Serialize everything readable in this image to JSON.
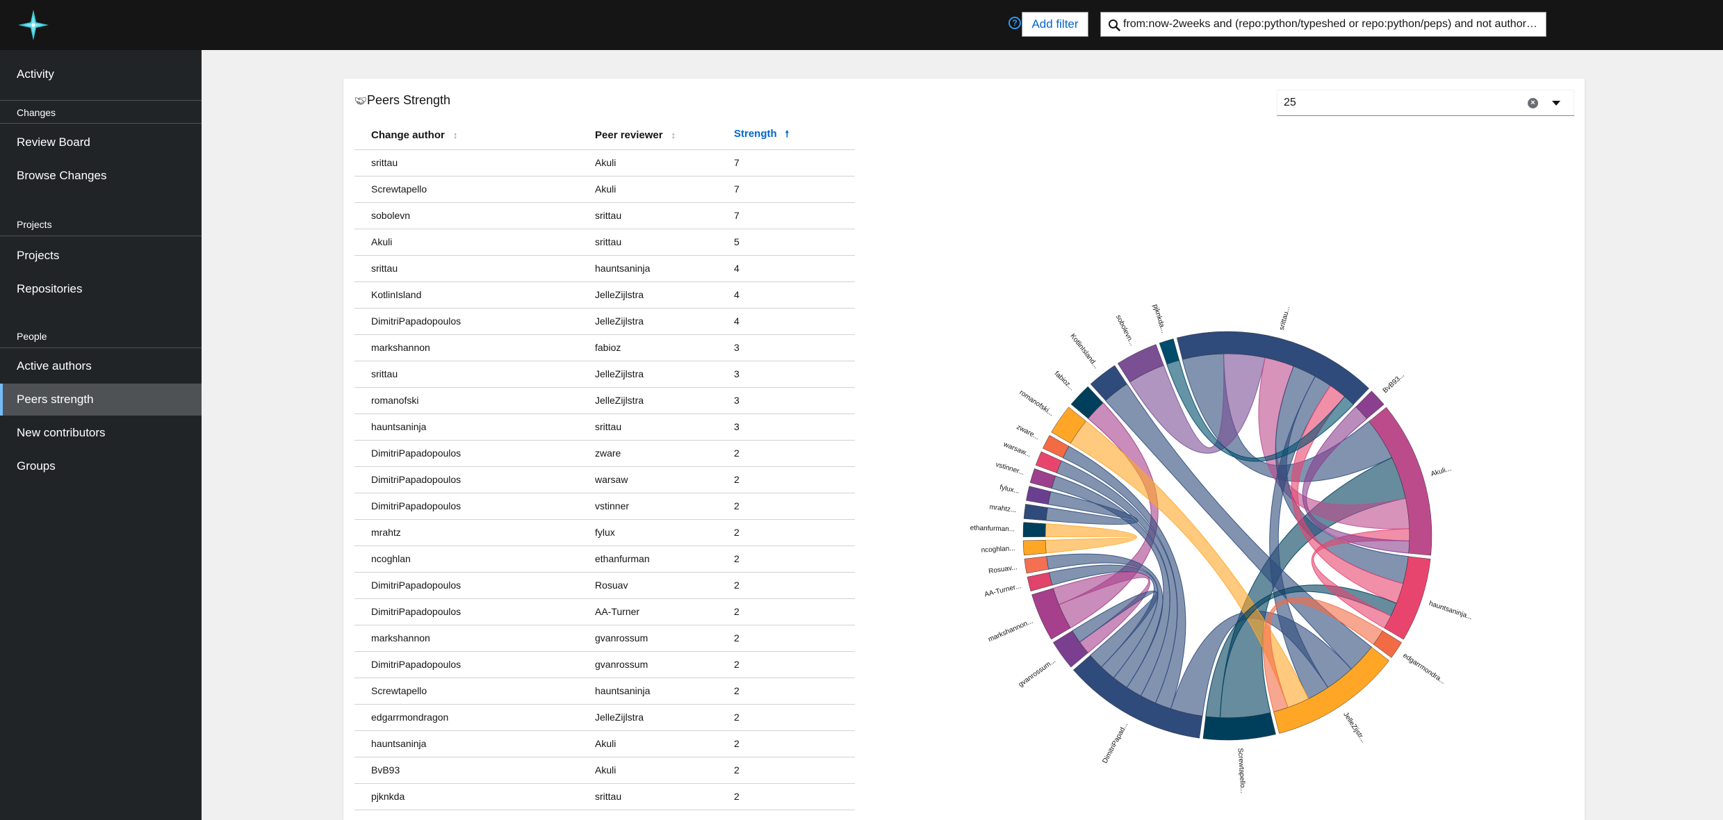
{
  "header": {
    "add_filter_label": "Add filter",
    "search_query": "from:now-2weeks and (repo:python/typeshed or repo:python/peps) and not author:(bot or bots or ci or zuul or jenkins or build)"
  },
  "sidebar": {
    "items": [
      {
        "label": "Activity",
        "kind": "item"
      },
      {
        "label": "Changes",
        "kind": "section"
      },
      {
        "label": "Review Board",
        "kind": "item"
      },
      {
        "label": "Browse Changes",
        "kind": "item"
      },
      {
        "label": "Projects",
        "kind": "section"
      },
      {
        "label": "Projects",
        "kind": "item"
      },
      {
        "label": "Repositories",
        "kind": "item"
      },
      {
        "label": "People",
        "kind": "section"
      },
      {
        "label": "Active authors",
        "kind": "item"
      },
      {
        "label": "Peers strength",
        "kind": "item",
        "active": true
      },
      {
        "label": "New contributors",
        "kind": "item"
      },
      {
        "label": "Groups",
        "kind": "item"
      }
    ]
  },
  "card": {
    "title": "Peers Strength",
    "limit_value": "25"
  },
  "table": {
    "columns": [
      "Change author",
      "Peer reviewer",
      "Strength"
    ],
    "sorted_column": "Strength",
    "rows": [
      [
        "srittau",
        "Akuli",
        "7"
      ],
      [
        "Screwtapello",
        "Akuli",
        "7"
      ],
      [
        "sobolevn",
        "srittau",
        "7"
      ],
      [
        "Akuli",
        "srittau",
        "5"
      ],
      [
        "srittau",
        "hauntsaninja",
        "4"
      ],
      [
        "KotlinIsland",
        "JelleZijlstra",
        "4"
      ],
      [
        "DimitriPapadopoulos",
        "JelleZijlstra",
        "4"
      ],
      [
        "markshannon",
        "fabioz",
        "3"
      ],
      [
        "srittau",
        "JelleZijlstra",
        "3"
      ],
      [
        "romanofski",
        "JelleZijlstra",
        "3"
      ],
      [
        "hauntsaninja",
        "srittau",
        "3"
      ],
      [
        "DimitriPapadopoulos",
        "zware",
        "2"
      ],
      [
        "DimitriPapadopoulos",
        "warsaw",
        "2"
      ],
      [
        "DimitriPapadopoulos",
        "vstinner",
        "2"
      ],
      [
        "mrahtz",
        "fylux",
        "2"
      ],
      [
        "ncoghlan",
        "ethanfurman",
        "2"
      ],
      [
        "DimitriPapadopoulos",
        "Rosuav",
        "2"
      ],
      [
        "DimitriPapadopoulos",
        "AA-Turner",
        "2"
      ],
      [
        "markshannon",
        "gvanrossum",
        "2"
      ],
      [
        "DimitriPapadopoulos",
        "gvanrossum",
        "2"
      ],
      [
        "Screwtapello",
        "hauntsaninja",
        "2"
      ],
      [
        "edgarrmondragon",
        "JelleZijlstra",
        "2"
      ],
      [
        "hauntsaninja",
        "Akuli",
        "2"
      ],
      [
        "BvB93",
        "Akuli",
        "2"
      ],
      [
        "pjknkda",
        "srittau",
        "2"
      ]
    ]
  },
  "chord": {
    "arcs": [
      {
        "label": "srittau...",
        "value": 17,
        "color": "#2f4b7c"
      },
      {
        "label": "BvB93...",
        "value": 1.5,
        "color": "#8a3f8f"
      },
      {
        "label": "Akuli...",
        "value": 13,
        "color": "#bc4b8c"
      },
      {
        "label": "hauntsaninja...",
        "value": 7,
        "color": "#e8456e"
      },
      {
        "label": "edgarrmondra...",
        "value": 1.5,
        "color": "#f26b45"
      },
      {
        "label": "JelleZijstr...",
        "value": 11,
        "color": "#ffa626"
      },
      {
        "label": "Screwtapello...",
        "value": 6,
        "color": "#003f5c"
      },
      {
        "label": "DimitriPapad...",
        "value": 12,
        "color": "#2f4b7c"
      },
      {
        "label": "gvanrossum...",
        "value": 2.5,
        "color": "#7a3f8f"
      },
      {
        "label": "markshannon...",
        "value": 4,
        "color": "#a63f8c"
      },
      {
        "label": "AA-Turner...",
        "value": 1.2,
        "color": "#e0436b"
      },
      {
        "label": "Rosuav...",
        "value": 1.2,
        "color": "#f57053"
      },
      {
        "label": "ncoghlan...",
        "value": 1.2,
        "color": "#ffa626"
      },
      {
        "label": "ethanfurman...",
        "value": 1.2,
        "color": "#003f5c"
      },
      {
        "label": "mrahtz...",
        "value": 1.2,
        "color": "#2f4b7c"
      },
      {
        "label": "fylux...",
        "value": 1.2,
        "color": "#6a3f8f"
      },
      {
        "label": "vstinner...",
        "value": 1.2,
        "color": "#9c3f8c"
      },
      {
        "label": "warsaw...",
        "value": 1.2,
        "color": "#e8456e"
      },
      {
        "label": "zware...",
        "value": 1.2,
        "color": "#f26b45"
      },
      {
        "label": "romanofski...",
        "value": 2.5,
        "color": "#ffa626"
      },
      {
        "label": "fabioz...",
        "value": 2,
        "color": "#003f5c"
      },
      {
        "label": "KotlinIsland...",
        "value": 2.5,
        "color": "#2f4b7c"
      },
      {
        "label": "sobolevn...",
        "value": 3.5,
        "color": "#7a4f94"
      },
      {
        "label": "pjknkda...",
        "value": 1.2,
        "color": "#004c6d"
      }
    ],
    "links": [
      [
        "srittau...",
        "Akuli...",
        7
      ],
      [
        "Screwtapello...",
        "Akuli...",
        7
      ],
      [
        "sobolevn...",
        "srittau...",
        7
      ],
      [
        "Akuli...",
        "srittau...",
        5
      ],
      [
        "srittau...",
        "hauntsaninja...",
        4
      ],
      [
        "KotlinIsland...",
        "JelleZijstr...",
        4
      ],
      [
        "DimitriPapad...",
        "JelleZijstr...",
        4
      ],
      [
        "markshannon...",
        "fabioz...",
        3
      ],
      [
        "srittau...",
        "JelleZijstr...",
        3
      ],
      [
        "romanofski...",
        "JelleZijstr...",
        3
      ],
      [
        "hauntsaninja...",
        "srittau...",
        3
      ],
      [
        "DimitriPapad...",
        "zware...",
        2
      ],
      [
        "DimitriPapad...",
        "warsaw...",
        2
      ],
      [
        "DimitriPapad...",
        "vstinner...",
        2
      ],
      [
        "mrahtz...",
        "fylux...",
        2
      ],
      [
        "ncoghlan...",
        "ethanfurman...",
        2
      ],
      [
        "DimitriPapad...",
        "Rosuav...",
        2
      ],
      [
        "DimitriPapad...",
        "AA-Turner...",
        2
      ],
      [
        "markshannon...",
        "gvanrossum...",
        2
      ],
      [
        "DimitriPapad...",
        "gvanrossum...",
        2
      ],
      [
        "Screwtapello...",
        "hauntsaninja...",
        2
      ],
      [
        "edgarrmondra...",
        "JelleZijstr...",
        2
      ],
      [
        "hauntsaninja...",
        "Akuli...",
        2
      ],
      [
        "BvB93...",
        "Akuli...",
        2
      ],
      [
        "pjknkda...",
        "srittau...",
        2
      ]
    ]
  },
  "colors": {
    "topbar": "#151515",
    "sidebar": "#212427",
    "active_item": "#4f5255",
    "accent": "#06c"
  }
}
